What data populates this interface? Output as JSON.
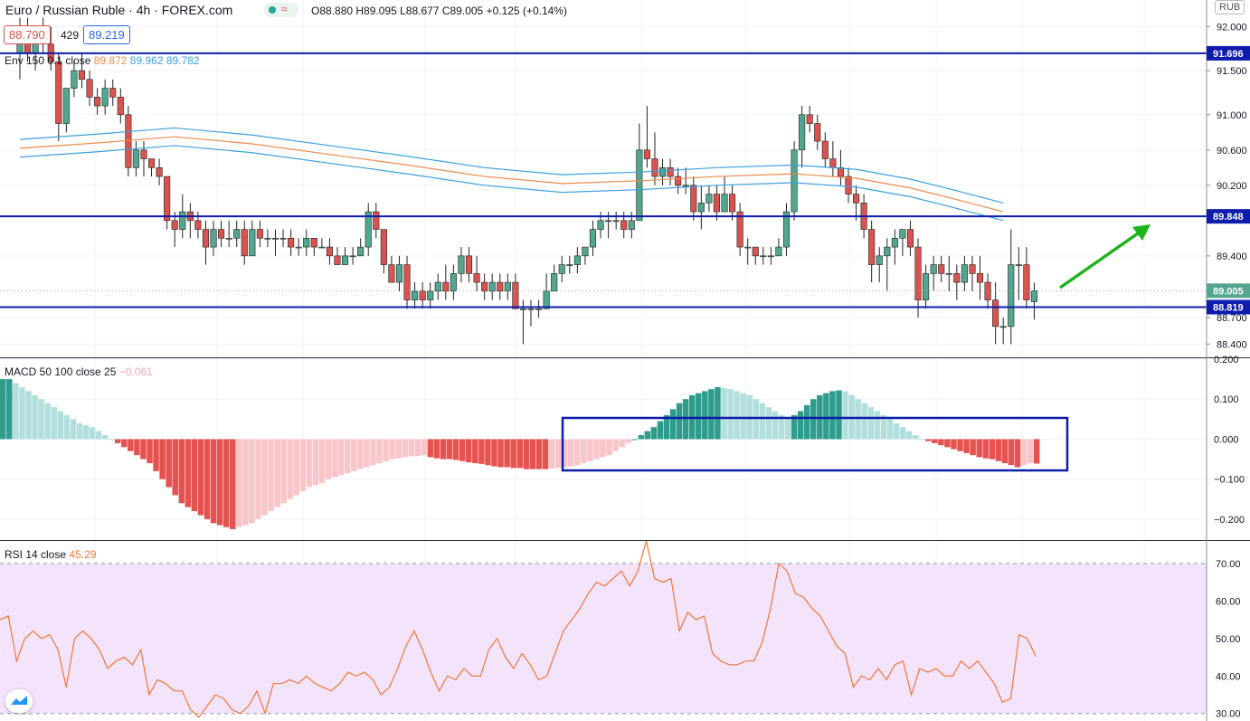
{
  "header": {
    "symbol": "Euro / Russian Ruble",
    "interval": "4h",
    "source": "FOREX.com",
    "open": "O88.880",
    "high": "H89.095",
    "low": "L88.677",
    "close": "C89.005",
    "change": "+0.125 (+0.14%)",
    "bid": "88.790",
    "spread": "429",
    "ask": "89.219",
    "currency": "RUB"
  },
  "indicators": {
    "env_label": "Env 150 0.1 close",
    "env_values": [
      "89.872",
      "89.962",
      "89.782"
    ],
    "macd_label": "MACD 50 100 close 25",
    "macd_value": "−0.061",
    "rsi_label": "RSI 14 close",
    "rsi_value": "45.29"
  },
  "colors": {
    "up": "#53a68f",
    "down": "#d9534f",
    "level": "#0d1cab",
    "arrow": "#1db31d",
    "env_mid": "#f08a4b",
    "env_band": "#3ca0e0",
    "rsi_line": "#f07838",
    "rsi_bg": "#f3e3fb",
    "hist_up_strong": "#2e9c8d",
    "hist_up_weak": "#b2dfdb",
    "hist_down_strong": "#e5524f",
    "hist_down_weak": "#f8c5ca"
  },
  "chart_data": {
    "type": "candlestick",
    "price_axis": {
      "ticks": [
        "92.000",
        "91.500",
        "91.000",
        "90.600",
        "90.200",
        "89.400",
        "88.700",
        "88.400"
      ],
      "ylim": [
        88.25,
        92.3
      ],
      "tag_current": "89.005",
      "current": 89.005
    },
    "levels": [
      {
        "label": "91.696",
        "value": 91.696
      },
      {
        "label": "89.848",
        "value": 89.848
      },
      {
        "label": "88.819",
        "value": 88.819
      }
    ],
    "candles": [
      [
        91.7,
        92.1,
        91.4,
        92.0
      ],
      [
        92.0,
        92.1,
        91.6,
        91.7
      ],
      [
        91.7,
        92.0,
        91.5,
        91.9
      ],
      [
        91.9,
        92.1,
        91.7,
        91.8
      ],
      [
        91.8,
        92.0,
        91.5,
        91.6
      ],
      [
        91.6,
        91.7,
        90.7,
        90.9
      ],
      [
        90.9,
        91.3,
        90.8,
        91.3
      ],
      [
        91.3,
        91.6,
        91.2,
        91.5
      ],
      [
        91.5,
        91.7,
        91.3,
        91.4
      ],
      [
        91.4,
        91.5,
        91.1,
        91.2
      ],
      [
        91.2,
        91.3,
        91.0,
        91.1
      ],
      [
        91.1,
        91.4,
        91.0,
        91.3
      ],
      [
        91.3,
        91.4,
        91.1,
        91.2
      ],
      [
        91.2,
        91.3,
        90.9,
        91.0
      ],
      [
        91.0,
        91.1,
        90.3,
        90.4
      ],
      [
        90.4,
        90.7,
        90.3,
        90.6
      ],
      [
        90.6,
        90.7,
        90.3,
        90.5
      ],
      [
        90.5,
        90.5,
        90.3,
        90.4
      ],
      [
        90.4,
        90.5,
        90.2,
        90.3
      ],
      [
        90.3,
        90.3,
        89.7,
        89.8
      ],
      [
        89.8,
        89.9,
        89.5,
        89.7
      ],
      [
        89.7,
        90.1,
        89.6,
        89.9
      ],
      [
        89.9,
        90.0,
        89.6,
        89.8
      ],
      [
        89.8,
        89.9,
        89.6,
        89.7
      ],
      [
        89.7,
        89.8,
        89.3,
        89.5
      ],
      [
        89.5,
        89.8,
        89.4,
        89.7
      ],
      [
        89.7,
        89.8,
        89.5,
        89.6
      ],
      [
        89.6,
        89.8,
        89.5,
        89.6
      ],
      [
        89.6,
        89.8,
        89.5,
        89.7
      ],
      [
        89.7,
        89.8,
        89.3,
        89.4
      ],
      [
        89.4,
        89.8,
        89.4,
        89.7
      ],
      [
        89.7,
        89.8,
        89.5,
        89.6
      ],
      [
        89.6,
        89.7,
        89.5,
        89.6
      ],
      [
        89.6,
        89.7,
        89.4,
        89.6
      ],
      [
        89.6,
        89.7,
        89.5,
        89.6
      ],
      [
        89.6,
        89.7,
        89.4,
        89.5
      ],
      [
        89.5,
        89.6,
        89.4,
        89.5
      ],
      [
        89.5,
        89.7,
        89.4,
        89.6
      ],
      [
        89.6,
        89.6,
        89.4,
        89.5
      ],
      [
        89.5,
        89.6,
        89.5,
        89.5
      ],
      [
        89.5,
        89.6,
        89.3,
        89.4
      ],
      [
        89.4,
        89.5,
        89.3,
        89.3
      ],
      [
        89.3,
        89.5,
        89.3,
        89.4
      ],
      [
        89.4,
        89.5,
        89.3,
        89.4
      ],
      [
        89.4,
        89.6,
        89.4,
        89.5
      ],
      [
        89.5,
        90.0,
        89.4,
        89.9
      ],
      [
        89.9,
        90.0,
        89.6,
        89.7
      ],
      [
        89.7,
        89.7,
        89.2,
        89.3
      ],
      [
        89.3,
        89.4,
        89.1,
        89.1
      ],
      [
        89.1,
        89.4,
        89.0,
        89.3
      ],
      [
        89.3,
        89.4,
        88.8,
        88.9
      ],
      [
        88.9,
        89.1,
        88.8,
        89.0
      ],
      [
        89.0,
        89.1,
        88.8,
        88.9
      ],
      [
        88.9,
        89.1,
        88.8,
        89.0
      ],
      [
        89.0,
        89.2,
        88.9,
        89.1
      ],
      [
        89.1,
        89.3,
        88.9,
        89.0
      ],
      [
        89.0,
        89.3,
        88.9,
        89.2
      ],
      [
        89.2,
        89.5,
        89.1,
        89.4
      ],
      [
        89.4,
        89.5,
        89.1,
        89.2
      ],
      [
        89.2,
        89.4,
        89.0,
        89.1
      ],
      [
        89.1,
        89.2,
        88.9,
        89.0
      ],
      [
        89.0,
        89.2,
        88.9,
        89.1
      ],
      [
        89.1,
        89.2,
        88.9,
        89.0
      ],
      [
        89.0,
        89.2,
        88.9,
        89.1
      ],
      [
        89.1,
        89.2,
        88.8,
        88.8
      ],
      [
        88.8,
        88.9,
        88.4,
        88.8
      ],
      [
        88.8,
        88.9,
        88.6,
        88.8
      ],
      [
        88.8,
        88.9,
        88.7,
        88.8
      ],
      [
        88.8,
        89.2,
        88.8,
        89.0
      ],
      [
        89.0,
        89.3,
        89.0,
        89.2
      ],
      [
        89.2,
        89.4,
        89.1,
        89.3
      ],
      [
        89.3,
        89.4,
        89.2,
        89.3
      ],
      [
        89.3,
        89.5,
        89.2,
        89.4
      ],
      [
        89.4,
        89.5,
        89.3,
        89.5
      ],
      [
        89.5,
        89.8,
        89.4,
        89.7
      ],
      [
        89.7,
        89.9,
        89.6,
        89.8
      ],
      [
        89.8,
        89.9,
        89.6,
        89.8
      ],
      [
        89.8,
        89.9,
        89.7,
        89.8
      ],
      [
        89.8,
        89.9,
        89.6,
        89.7
      ],
      [
        89.7,
        89.9,
        89.6,
        89.8
      ],
      [
        89.8,
        90.9,
        89.8,
        90.6
      ],
      [
        90.6,
        91.1,
        90.4,
        90.5
      ],
      [
        90.5,
        90.8,
        90.2,
        90.3
      ],
      [
        90.3,
        90.5,
        90.2,
        90.4
      ],
      [
        90.4,
        90.5,
        90.2,
        90.3
      ],
      [
        90.3,
        90.4,
        90.1,
        90.2
      ],
      [
        90.2,
        90.4,
        90.1,
        90.2
      ],
      [
        90.2,
        90.3,
        89.8,
        89.9
      ],
      [
        89.9,
        90.2,
        89.7,
        90.0
      ],
      [
        90.0,
        90.2,
        89.9,
        90.1
      ],
      [
        90.1,
        90.2,
        89.8,
        89.9
      ],
      [
        89.9,
        90.3,
        89.9,
        90.1
      ],
      [
        90.1,
        90.2,
        89.8,
        89.9
      ],
      [
        89.9,
        90.0,
        89.4,
        89.5
      ],
      [
        89.5,
        89.6,
        89.3,
        89.5
      ],
      [
        89.5,
        89.5,
        89.3,
        89.4
      ],
      [
        89.4,
        89.5,
        89.3,
        89.4
      ],
      [
        89.4,
        89.5,
        89.3,
        89.4
      ],
      [
        89.4,
        89.6,
        89.4,
        89.5
      ],
      [
        89.5,
        90.0,
        89.4,
        89.9
      ],
      [
        89.9,
        90.7,
        89.8,
        90.6
      ],
      [
        90.6,
        91.1,
        90.4,
        91.0
      ],
      [
        91.0,
        91.1,
        90.8,
        90.9
      ],
      [
        90.9,
        91.0,
        90.6,
        90.7
      ],
      [
        90.7,
        90.8,
        90.4,
        90.5
      ],
      [
        90.5,
        90.7,
        90.3,
        90.4
      ],
      [
        90.4,
        90.6,
        90.2,
        90.3
      ],
      [
        90.3,
        90.4,
        90.0,
        90.1
      ],
      [
        90.1,
        90.2,
        89.8,
        90.0
      ],
      [
        90.0,
        90.1,
        89.6,
        89.7
      ],
      [
        89.7,
        89.8,
        89.1,
        89.3
      ],
      [
        89.3,
        89.5,
        89.1,
        89.4
      ],
      [
        89.4,
        89.6,
        89.0,
        89.5
      ],
      [
        89.5,
        89.7,
        89.3,
        89.6
      ],
      [
        89.6,
        89.7,
        89.4,
        89.7
      ],
      [
        89.7,
        89.8,
        89.4,
        89.5
      ],
      [
        89.5,
        89.6,
        88.7,
        88.9
      ],
      [
        88.9,
        89.3,
        88.8,
        89.2
      ],
      [
        89.2,
        89.4,
        89.0,
        89.3
      ],
      [
        89.3,
        89.4,
        89.1,
        89.2
      ],
      [
        89.2,
        89.4,
        89.0,
        89.2
      ],
      [
        89.2,
        89.3,
        88.9,
        89.1
      ],
      [
        89.1,
        89.4,
        89.0,
        89.3
      ],
      [
        89.3,
        89.4,
        89.0,
        89.2
      ],
      [
        89.2,
        89.4,
        88.9,
        89.1
      ],
      [
        89.1,
        89.2,
        88.8,
        88.9
      ],
      [
        88.9,
        89.1,
        88.4,
        88.6
      ],
      [
        88.6,
        88.7,
        88.4,
        88.6
      ],
      [
        88.6,
        89.7,
        88.4,
        89.3
      ],
      [
        89.3,
        89.5,
        88.9,
        89.3
      ],
      [
        89.3,
        89.5,
        88.8,
        88.9
      ],
      [
        88.88,
        89.095,
        88.677,
        89.005
      ]
    ],
    "envelope": {
      "mid": [
        [
          0,
          90.62
        ],
        [
          10,
          90.68
        ],
        [
          20,
          90.75
        ],
        [
          30,
          90.67
        ],
        [
          40,
          90.55
        ],
        [
          50,
          90.43
        ],
        [
          60,
          90.3
        ],
        [
          70,
          90.22
        ],
        [
          80,
          90.25
        ],
        [
          90,
          90.3
        ],
        [
          100,
          90.33
        ],
        [
          108,
          90.28
        ],
        [
          115,
          90.17
        ],
        [
          120,
          90.06
        ],
        [
          127,
          89.9
        ]
      ],
      "offset": 0.1
    },
    "macd_histogram": {
      "ylim": [
        -0.25,
        0.2
      ],
      "ticks": [
        "0.200",
        "0.100",
        "0.000",
        "−0.100",
        "−0.200"
      ],
      "values": [
        0.15,
        0.15,
        0.14,
        0.13,
        0.12,
        0.11,
        0.1,
        0.09,
        0.08,
        0.07,
        0.06,
        0.05,
        0.04,
        0.035,
        0.03,
        0.02,
        0.01,
        0.0,
        -0.01,
        -0.02,
        -0.03,
        -0.04,
        -0.05,
        -0.06,
        -0.08,
        -0.1,
        -0.12,
        -0.14,
        -0.16,
        -0.17,
        -0.18,
        -0.19,
        -0.2,
        -0.21,
        -0.215,
        -0.22,
        -0.225,
        -0.22,
        -0.215,
        -0.21,
        -0.2,
        -0.19,
        -0.18,
        -0.17,
        -0.16,
        -0.15,
        -0.14,
        -0.13,
        -0.12,
        -0.115,
        -0.11,
        -0.1,
        -0.095,
        -0.09,
        -0.085,
        -0.08,
        -0.075,
        -0.07,
        -0.065,
        -0.06,
        -0.055,
        -0.05,
        -0.048,
        -0.045,
        -0.043,
        -0.042,
        -0.04,
        -0.045,
        -0.048,
        -0.05,
        -0.05,
        -0.052,
        -0.055,
        -0.058,
        -0.06,
        -0.062,
        -0.065,
        -0.068,
        -0.07,
        -0.07,
        -0.072,
        -0.072,
        -0.075,
        -0.075,
        -0.075,
        -0.075,
        -0.074,
        -0.072,
        -0.07,
        -0.068,
        -0.065,
        -0.06,
        -0.055,
        -0.05,
        -0.045,
        -0.04,
        -0.03,
        -0.02,
        -0.01,
        0.0,
        0.01,
        0.02,
        0.03,
        0.045,
        0.06,
        0.075,
        0.09,
        0.1,
        0.11,
        0.115,
        0.12,
        0.125,
        0.13,
        0.128,
        0.125,
        0.12,
        0.115,
        0.11,
        0.1,
        0.09,
        0.08,
        0.07,
        0.06,
        0.055,
        0.06,
        0.07,
        0.085,
        0.1,
        0.11,
        0.115,
        0.12,
        0.122,
        0.12,
        0.11,
        0.1,
        0.09,
        0.08,
        0.07,
        0.06,
        0.05,
        0.04,
        0.03,
        0.02,
        0.01,
        0.0,
        -0.005,
        -0.01,
        -0.015,
        -0.02,
        -0.025,
        -0.03,
        -0.035,
        -0.04,
        -0.045,
        -0.048,
        -0.05,
        -0.055,
        -0.06,
        -0.065,
        -0.07,
        -0.065,
        -0.06,
        -0.061
      ]
    },
    "rsi": {
      "ylim": [
        28,
        76
      ],
      "ticks": [
        "70.00",
        "60.00",
        "50.00",
        "40.00",
        "30.00"
      ],
      "band": [
        30,
        70
      ],
      "values": [
        55,
        56,
        44,
        50,
        52,
        50,
        51,
        47,
        37,
        50,
        52,
        50,
        47,
        42,
        44,
        45,
        43,
        47,
        35,
        39,
        38,
        36,
        36,
        31,
        29,
        32,
        35,
        34,
        31,
        30,
        32,
        36,
        30,
        38,
        38,
        39,
        38,
        40,
        38,
        37,
        36,
        38,
        41,
        40,
        41,
        39,
        35,
        37,
        42,
        48,
        52,
        47,
        41,
        36,
        40,
        39,
        42,
        40,
        40,
        47,
        50,
        45,
        42,
        46,
        43,
        39,
        40,
        46,
        52,
        55,
        58,
        62,
        65,
        64,
        66,
        68,
        64,
        68,
        76,
        66,
        65,
        66,
        52,
        57,
        55,
        56,
        46,
        44,
        43,
        43,
        44,
        44,
        49,
        58,
        70,
        68,
        62,
        61,
        58,
        56,
        52,
        48,
        46,
        37,
        40,
        39,
        42,
        39,
        43,
        44,
        35,
        42,
        41,
        42,
        40,
        40,
        44,
        42,
        44,
        41,
        38,
        33,
        34,
        51,
        50,
        45.29
      ]
    }
  }
}
